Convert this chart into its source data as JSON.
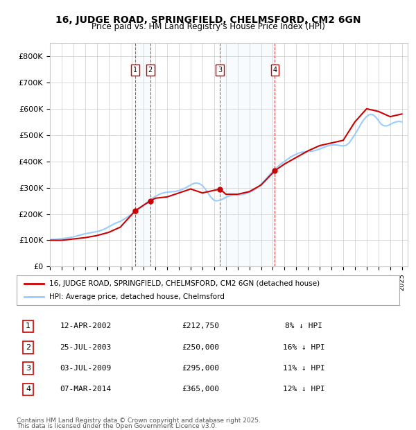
{
  "title": "16, JUDGE ROAD, SPRINGFIELD, CHELMSFORD, CM2 6GN",
  "subtitle": "Price paid vs. HM Land Registry's House Price Index (HPI)",
  "ylabel": "",
  "ylim": [
    0,
    850000
  ],
  "yticks": [
    0,
    100000,
    200000,
    300000,
    400000,
    500000,
    600000,
    700000,
    800000
  ],
  "ytick_labels": [
    "£0",
    "£100K",
    "£200K",
    "£300K",
    "£400K",
    "£500K",
    "£600K",
    "£700K",
    "£800K"
  ],
  "xlim_start": 1995.0,
  "xlim_end": 2025.5,
  "background_color": "#ffffff",
  "grid_color": "#cccccc",
  "line_color_price": "#cc0000",
  "line_color_hpi": "#99ccff",
  "transactions": [
    {
      "id": 1,
      "date": "12-APR-2002",
      "year": 2002.28,
      "price": 212750,
      "pct": "8%",
      "dir": "↓"
    },
    {
      "id": 2,
      "date": "25-JUL-2003",
      "year": 2003.56,
      "price": 250000,
      "pct": "16%",
      "dir": "↓"
    },
    {
      "id": 3,
      "date": "03-JUL-2009",
      "year": 2009.5,
      "price": 295000,
      "pct": "11%",
      "dir": "↓"
    },
    {
      "id": 4,
      "date": "07-MAR-2014",
      "year": 2014.18,
      "price": 365000,
      "pct": "12%",
      "dir": "↓"
    }
  ],
  "legend_label_price": "16, JUDGE ROAD, SPRINGFIELD, CHELMSFORD, CM2 6GN (detached house)",
  "legend_label_hpi": "HPI: Average price, detached house, Chelmsford",
  "footer1": "Contains HM Land Registry data © Crown copyright and database right 2025.",
  "footer2": "This data is licensed under the Open Government Licence v3.0.",
  "hpi_years": [
    1995,
    1995.25,
    1995.5,
    1995.75,
    1996,
    1996.25,
    1996.5,
    1996.75,
    1997,
    1997.25,
    1997.5,
    1997.75,
    1998,
    1998.25,
    1998.5,
    1998.75,
    1999,
    1999.25,
    1999.5,
    1999.75,
    2000,
    2000.25,
    2000.5,
    2000.75,
    2001,
    2001.25,
    2001.5,
    2001.75,
    2002,
    2002.25,
    2002.5,
    2002.75,
    2003,
    2003.25,
    2003.5,
    2003.75,
    2004,
    2004.25,
    2004.5,
    2004.75,
    2005,
    2005.25,
    2005.5,
    2005.75,
    2006,
    2006.25,
    2006.5,
    2006.75,
    2007,
    2007.25,
    2007.5,
    2007.75,
    2008,
    2008.25,
    2008.5,
    2008.75,
    2009,
    2009.25,
    2009.5,
    2009.75,
    2010,
    2010.25,
    2010.5,
    2010.75,
    2011,
    2011.25,
    2011.5,
    2011.75,
    2012,
    2012.25,
    2012.5,
    2012.75,
    2013,
    2013.25,
    2013.5,
    2013.75,
    2014,
    2014.25,
    2014.5,
    2014.75,
    2015,
    2015.25,
    2015.5,
    2015.75,
    2016,
    2016.25,
    2016.5,
    2016.75,
    2017,
    2017.25,
    2017.5,
    2017.75,
    2018,
    2018.25,
    2018.5,
    2018.75,
    2019,
    2019.25,
    2019.5,
    2019.75,
    2020,
    2020.25,
    2020.5,
    2020.75,
    2021,
    2021.25,
    2021.5,
    2021.75,
    2022,
    2022.25,
    2022.5,
    2022.75,
    2023,
    2023.25,
    2023.5,
    2023.75,
    2024,
    2024.25,
    2024.5,
    2024.75,
    2025
  ],
  "hpi_values": [
    103000,
    103500,
    104000,
    105000,
    106000,
    107500,
    109000,
    111000,
    113000,
    116000,
    119000,
    122000,
    125000,
    127000,
    129000,
    131000,
    133000,
    136000,
    140000,
    145000,
    151000,
    157000,
    163000,
    168000,
    172000,
    178000,
    185000,
    193000,
    200000,
    208000,
    217000,
    226000,
    234000,
    243000,
    252000,
    260000,
    267000,
    273000,
    278000,
    281000,
    283000,
    284000,
    285000,
    286000,
    289000,
    293000,
    298000,
    304000,
    310000,
    316000,
    318000,
    315000,
    308000,
    295000,
    278000,
    262000,
    252000,
    250000,
    253000,
    257000,
    263000,
    268000,
    271000,
    272000,
    272000,
    273000,
    275000,
    278000,
    282000,
    287000,
    294000,
    303000,
    314000,
    325000,
    337000,
    350000,
    362000,
    373000,
    383000,
    392000,
    400000,
    408000,
    416000,
    422000,
    427000,
    432000,
    435000,
    436000,
    437000,
    438000,
    440000,
    443000,
    447000,
    452000,
    456000,
    460000,
    462000,
    463000,
    462000,
    460000,
    459000,
    461000,
    470000,
    486000,
    502000,
    521000,
    541000,
    558000,
    571000,
    578000,
    578000,
    570000,
    556000,
    541000,
    535000,
    535000,
    540000,
    546000,
    550000,
    552000,
    550000
  ],
  "price_years": [
    1995.0,
    1996.0,
    1997.0,
    1998.0,
    1999.0,
    2000.0,
    2001.0,
    2002.28,
    2003.56,
    2004.0,
    2005.0,
    2006.0,
    2007.0,
    2008.0,
    2009.5,
    2010.0,
    2011.0,
    2012.0,
    2013.0,
    2014.18,
    2015.0,
    2016.0,
    2017.0,
    2018.0,
    2019.0,
    2020.0,
    2021.0,
    2022.0,
    2023.0,
    2024.0,
    2025.0
  ],
  "price_values": [
    100000,
    100000,
    105000,
    110000,
    118000,
    130000,
    150000,
    212750,
    250000,
    260000,
    265000,
    280000,
    295000,
    280000,
    295000,
    275000,
    275000,
    285000,
    310000,
    365000,
    390000,
    415000,
    440000,
    460000,
    470000,
    480000,
    550000,
    600000,
    590000,
    570000,
    580000
  ]
}
